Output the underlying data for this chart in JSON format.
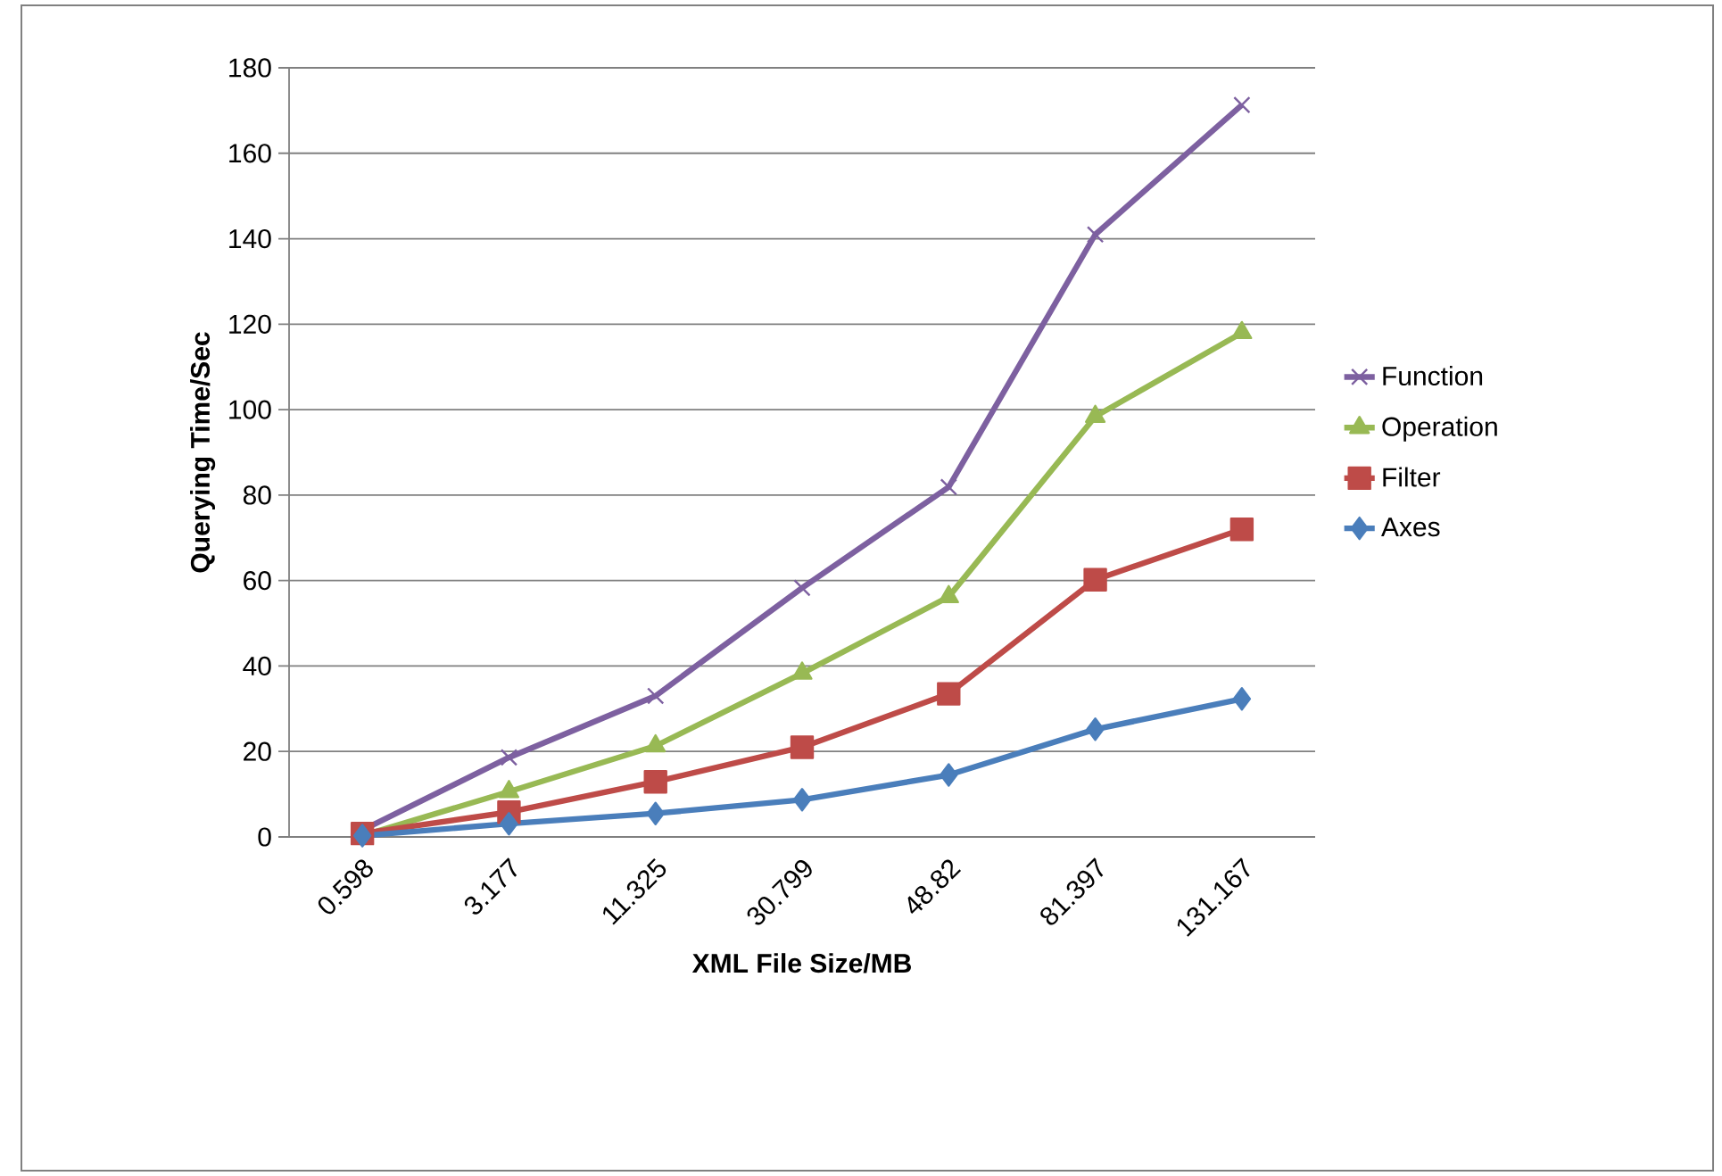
{
  "chart_data": {
    "type": "line",
    "xlabel": "XML File Size/MB",
    "ylabel": "Querying Time/Sec",
    "categories": [
      "0.598",
      "3.177",
      "11.325",
      "30.799",
      "48.82",
      "81.397",
      "131.167"
    ],
    "series": [
      {
        "name": "Function",
        "color": "#7d60a0",
        "marker": "cross",
        "values": [
          1.6,
          18.6,
          33,
          58.3,
          81.9,
          141,
          171.3
        ]
      },
      {
        "name": "Operation",
        "color": "#98b954",
        "marker": "triangle",
        "values": [
          0.3,
          10.6,
          21.3,
          38.3,
          56.2,
          98.4,
          118
        ]
      },
      {
        "name": "Filter",
        "color": "#be4b48",
        "marker": "square",
        "values": [
          0.8,
          5.8,
          12.9,
          21,
          33.5,
          60.2,
          72
        ]
      },
      {
        "name": "Axes",
        "color": "#4a7ebb",
        "marker": "diamond",
        "values": [
          0.3,
          3.1,
          5.5,
          8.7,
          14.5,
          25.2,
          32.3
        ]
      }
    ],
    "ylim": [
      0,
      180
    ],
    "yticks": [
      0,
      20,
      40,
      60,
      80,
      100,
      120,
      140,
      160,
      180
    ],
    "grid": "y",
    "legend": "right",
    "line_style": "solid"
  }
}
